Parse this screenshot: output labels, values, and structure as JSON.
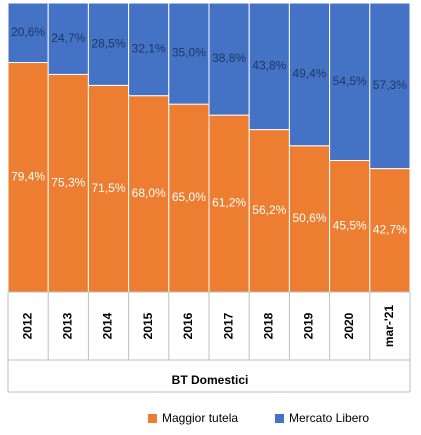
{
  "chart_data": {
    "type": "stacked_bar_100",
    "x_label": "BT Domestici",
    "categories": [
      "2012",
      "2013",
      "2014",
      "2015",
      "2016",
      "2017",
      "2018",
      "2019",
      "2020",
      "mar-'21"
    ],
    "series": [
      {
        "name": "Maggior tutela",
        "color": "#ed7d31",
        "label_color": "#ffffff",
        "values": [
          79.4,
          75.3,
          71.5,
          68.0,
          65.0,
          61.2,
          56.2,
          50.6,
          45.5,
          42.7
        ],
        "value_labels": [
          "79,4%",
          "75,3%",
          "71,5%",
          "68,0%",
          "65,0%",
          "61,2%",
          "56,2%",
          "50,6%",
          "45,5%",
          "42,7%"
        ]
      },
      {
        "name": "Mercato Libero",
        "color": "#4472c4",
        "label_color": "#1f3864",
        "values": [
          20.6,
          24.7,
          28.5,
          32.1,
          35.0,
          38.8,
          43.8,
          49.4,
          54.5,
          57.3
        ],
        "value_labels": [
          "20,6%",
          "24,7%",
          "28,5%",
          "32,1%",
          "35,0%",
          "38,8%",
          "43,8%",
          "49,4%",
          "54,5%",
          "57,3%"
        ]
      }
    ]
  }
}
